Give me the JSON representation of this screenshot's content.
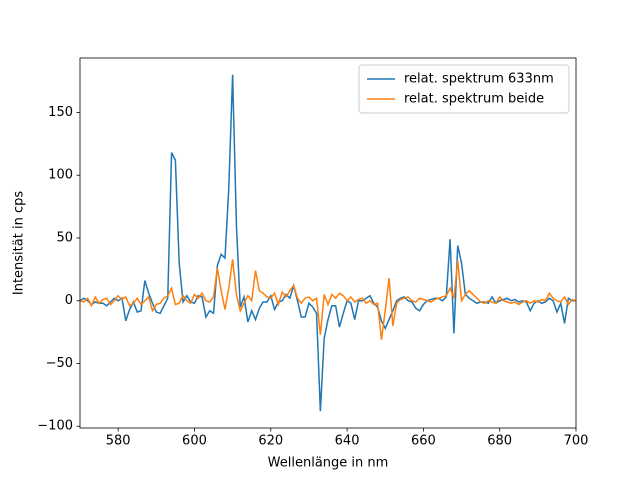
{
  "chart_data": {
    "type": "line",
    "xlabel": "Wellenlänge in nm",
    "ylabel": "Intensität in cps",
    "x": [
      570,
      571,
      572,
      573,
      574,
      575,
      576,
      577,
      578,
      579,
      580,
      581,
      582,
      583,
      584,
      585,
      586,
      587,
      588,
      589,
      590,
      591,
      592,
      593,
      594,
      595,
      596,
      597,
      598,
      599,
      600,
      601,
      602,
      603,
      604,
      605,
      606,
      607,
      608,
      609,
      610,
      611,
      612,
      613,
      614,
      615,
      616,
      617,
      618,
      619,
      620,
      621,
      622,
      623,
      624,
      625,
      626,
      627,
      628,
      629,
      630,
      631,
      632,
      633,
      634,
      635,
      636,
      637,
      638,
      639,
      640,
      641,
      642,
      643,
      644,
      645,
      646,
      647,
      648,
      649,
      650,
      651,
      652,
      653,
      654,
      655,
      656,
      657,
      658,
      659,
      660,
      661,
      662,
      663,
      664,
      665,
      666,
      667,
      668,
      669,
      670,
      671,
      672,
      673,
      674,
      675,
      676,
      677,
      678,
      679,
      680,
      681,
      682,
      683,
      684,
      685,
      686,
      687,
      688,
      689,
      690,
      691,
      692,
      693,
      694,
      695,
      696,
      697,
      698,
      699,
      700
    ],
    "series": [
      {
        "name": "relat. spektrum 633nm",
        "color": "#1f77b4",
        "values": [
          0,
          2,
          0,
          -3,
          -1,
          -2,
          -2,
          -4,
          -1,
          2,
          0,
          2,
          -16,
          -7,
          -1,
          -9,
          -8,
          16,
          6,
          -2,
          -9,
          -10,
          -4,
          2,
          118,
          112,
          30,
          -1,
          4,
          -1,
          -2,
          4,
          3,
          -13,
          -8,
          -10,
          28,
          37,
          34,
          90,
          180,
          60,
          -5,
          3,
          -17,
          -8,
          -15,
          -6,
          -1,
          -1,
          4,
          -7,
          -1,
          0,
          5,
          2,
          12,
          0,
          -13,
          -13,
          -2,
          -5,
          -10,
          -88,
          -30,
          -15,
          -4,
          -4,
          -21,
          -10,
          0,
          -2,
          -15,
          0,
          0,
          2,
          4,
          -2,
          -5,
          -16,
          -22,
          -15,
          -8,
          0,
          2,
          3,
          0,
          -1,
          -6,
          -8,
          -3,
          0,
          1,
          2,
          2,
          0,
          3,
          49,
          -26,
          44,
          30,
          5,
          2,
          0,
          -2,
          -1,
          -1,
          -2,
          3,
          -2,
          0,
          1,
          2,
          0,
          1,
          -1,
          0,
          -1,
          -8,
          -2,
          0,
          -2,
          -1,
          2,
          0,
          -9,
          -2,
          -18,
          2,
          0,
          0
        ]
      },
      {
        "name": "relat. spektrum beide",
        "color": "#ff7f0e",
        "values": [
          0,
          -1,
          2,
          -4,
          3,
          -2,
          1,
          2,
          -3,
          0,
          4,
          1,
          3,
          -4,
          -2,
          2,
          -3,
          0,
          3,
          -8,
          -3,
          -2,
          2,
          4,
          10,
          -3,
          -2,
          4,
          0,
          -2,
          5,
          2,
          6,
          0,
          -1,
          3,
          26,
          8,
          -7,
          10,
          33,
          5,
          -8,
          -2,
          4,
          0,
          24,
          8,
          6,
          3,
          2,
          6,
          -3,
          7,
          3,
          8,
          12,
          2,
          -2,
          2,
          3,
          0,
          2,
          -27,
          5,
          -3,
          5,
          2,
          6,
          4,
          0,
          3,
          -1,
          1,
          2,
          -2,
          0,
          -3,
          -2,
          -31,
          -8,
          18,
          -20,
          -2,
          1,
          2,
          3,
          0,
          -1,
          2,
          1,
          0,
          -1,
          1,
          2,
          3,
          4,
          10,
          2,
          32,
          0,
          5,
          8,
          5,
          2,
          -1,
          -2,
          0,
          -1,
          -2,
          3,
          0,
          -1,
          -2,
          -1,
          -3,
          -1,
          0,
          -2,
          0,
          -1,
          1,
          0,
          6,
          2,
          0,
          -1,
          3,
          -3,
          1,
          0
        ]
      }
    ],
    "xlim": [
      570,
      700
    ],
    "xticks": [
      580,
      600,
      620,
      640,
      660,
      680,
      700
    ],
    "ylim": [
      -101.4,
      193.4
    ],
    "yticks": [
      {
        "value": -100,
        "label": "−100"
      },
      {
        "value": -50,
        "label": "−50"
      },
      0,
      50,
      100,
      150
    ],
    "legend": "upper right"
  }
}
